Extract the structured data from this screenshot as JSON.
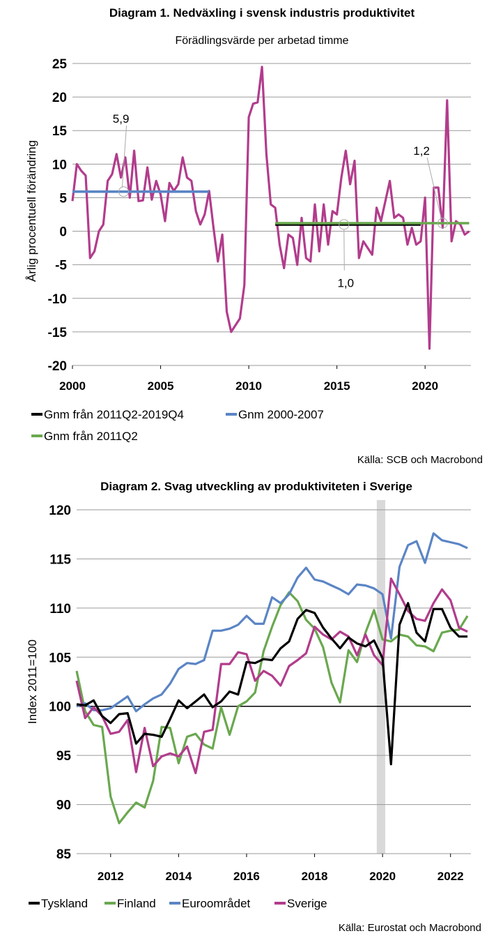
{
  "chart_data": [
    {
      "type": "line",
      "title": "Diagram 1. Nedväxling i svensk industris produktivitet",
      "subtitle": "Förädlingsvärde per arbetad timme",
      "ylabel": "Årlig procentuell förändring",
      "xlabel": "",
      "xlim": [
        2000,
        2022.6
      ],
      "ylim": [
        -20,
        25
      ],
      "xticks": [
        2000,
        2005,
        2010,
        2015,
        2020
      ],
      "yticks": [
        -20,
        -15,
        -10,
        -5,
        0,
        5,
        10,
        15,
        20,
        25
      ],
      "grid": "horizontal",
      "source": "Källa: SCB och Macrobond",
      "series": [
        {
          "name": "",
          "color": "#b23c8c",
          "x": [
            2000.0,
            2000.25,
            2000.5,
            2000.75,
            2001.0,
            2001.25,
            2001.5,
            2001.75,
            2002.0,
            2002.25,
            2002.5,
            2002.75,
            2003.0,
            2003.25,
            2003.5,
            2003.75,
            2004.0,
            2004.25,
            2004.5,
            2004.75,
            2005.0,
            2005.25,
            2005.5,
            2005.75,
            2006.0,
            2006.25,
            2006.5,
            2006.75,
            2007.0,
            2007.25,
            2007.5,
            2007.75,
            2008.0,
            2008.25,
            2008.5,
            2008.75,
            2009.0,
            2009.25,
            2009.5,
            2009.75,
            2010.0,
            2010.25,
            2010.5,
            2010.75,
            2011.0,
            2011.25,
            2011.5,
            2011.75,
            2012.0,
            2012.25,
            2012.5,
            2012.75,
            2013.0,
            2013.25,
            2013.5,
            2013.75,
            2014.0,
            2014.25,
            2014.5,
            2014.75,
            2015.0,
            2015.25,
            2015.5,
            2015.75,
            2016.0,
            2016.25,
            2016.5,
            2016.75,
            2017.0,
            2017.25,
            2017.5,
            2017.75,
            2018.0,
            2018.25,
            2018.5,
            2018.75,
            2019.0,
            2019.25,
            2019.5,
            2019.75,
            2020.0,
            2020.25,
            2020.5,
            2020.75,
            2021.0,
            2021.25,
            2021.5,
            2021.75,
            2022.0,
            2022.25,
            2022.5
          ],
          "values": [
            4.5,
            10.0,
            9.0,
            8.3,
            -4.0,
            -3.0,
            0.0,
            1.0,
            7.5,
            8.5,
            11.5,
            8.0,
            11.0,
            5.0,
            12.0,
            4.5,
            4.6,
            9.5,
            4.7,
            7.5,
            5.5,
            1.5,
            7.2,
            6.0,
            7.0,
            11.0,
            8.0,
            7.5,
            3.0,
            1.0,
            2.5,
            6.0,
            0.5,
            -4.5,
            -0.5,
            -12.0,
            -15.0,
            -14.0,
            -13.0,
            -8.0,
            17.0,
            19.0,
            19.2,
            24.5,
            11.5,
            4.0,
            3.5,
            -2.0,
            -5.5,
            -0.5,
            -1.0,
            -5.0,
            2.0,
            -4.0,
            -4.5,
            4.0,
            -3.0,
            4.0,
            -2.0,
            3.0,
            2.5,
            8.0,
            12.0,
            7.0,
            10.5,
            -4.0,
            -1.5,
            -2.5,
            -3.5,
            3.5,
            1.5,
            4.5,
            7.5,
            2.0,
            2.5,
            2.0,
            -2.0,
            0.5,
            -2.0,
            -1.5,
            5.0,
            -17.5,
            6.5,
            6.5,
            0.5,
            19.5,
            -1.5,
            1.5,
            1.0,
            -0.5,
            0.0
          ]
        },
        {
          "name": "Gnm 2000-2007",
          "color": "#5b85c5",
          "x": [
            2000.0,
            2007.75
          ],
          "values": [
            5.9,
            5.9
          ]
        },
        {
          "name": "Gnm från 2011Q2-2019Q4",
          "color": "#000000",
          "x": [
            2011.5,
            2019.75
          ],
          "values": [
            1.0,
            1.0
          ]
        },
        {
          "name": "Gnm från 2011Q2",
          "color": "#6aa84f",
          "x": [
            2011.5,
            2022.5
          ],
          "values": [
            1.2,
            1.2
          ]
        }
      ],
      "legend_order": [
        "Gnm från 2011Q2-2019Q4",
        "Gnm 2000-2007",
        "Gnm från 2011Q2"
      ],
      "annotations": [
        {
          "text": "5,9",
          "x": 2002.9,
          "y": 5.9,
          "label_x": 2002.75,
          "label_y": 16.8
        },
        {
          "text": "1,0",
          "x": 2015.4,
          "y": 1.0,
          "label_x": 2015.5,
          "label_y": -7.7
        },
        {
          "text": "1,2",
          "x": 2021.0,
          "y": 1.2,
          "label_x": 2019.8,
          "label_y": 12.0
        }
      ]
    },
    {
      "type": "line",
      "title": "Diagram 2. Svag utveckling av produktiviteten i Sverige",
      "ylabel": "Index 2011=100",
      "xlabel": "",
      "xlim": [
        2011.0,
        2022.6
      ],
      "ylim": [
        85,
        120
      ],
      "xticks": [
        2012,
        2014,
        2016,
        2018,
        2020,
        2022
      ],
      "yticks": [
        85,
        90,
        95,
        100,
        105,
        110,
        115,
        120
      ],
      "grid": "horizontal",
      "reference_line": 100,
      "shaded_band": [
        2019.83,
        2020.08
      ],
      "source": "Källa: Eurostat och Macrobond",
      "series": [
        {
          "name": "Tyskland",
          "color": "#000000",
          "x": [
            2011.0,
            2011.25,
            2011.5,
            2011.75,
            2012.0,
            2012.25,
            2012.5,
            2012.75,
            2013.0,
            2013.25,
            2013.5,
            2013.75,
            2014.0,
            2014.25,
            2014.5,
            2014.75,
            2015.0,
            2015.25,
            2015.5,
            2015.75,
            2016.0,
            2016.25,
            2016.5,
            2016.75,
            2017.0,
            2017.25,
            2017.5,
            2017.75,
            2018.0,
            2018.25,
            2018.5,
            2018.75,
            2019.0,
            2019.25,
            2019.5,
            2019.75,
            2020.0,
            2020.25,
            2020.5,
            2020.75,
            2021.0,
            2021.25,
            2021.5,
            2021.75,
            2022.0,
            2022.25,
            2022.5
          ],
          "values": [
            100.2,
            100.1,
            100.6,
            99.0,
            98.3,
            99.2,
            99.3,
            96.2,
            97.2,
            97.1,
            96.9,
            98.7,
            100.6,
            99.8,
            100.5,
            101.2,
            99.9,
            100.5,
            101.5,
            101.2,
            104.5,
            104.4,
            104.8,
            104.7,
            105.9,
            106.6,
            108.9,
            109.8,
            109.5,
            108.0,
            106.9,
            105.9,
            107.0,
            106.4,
            106.1,
            106.7,
            104.9,
            94.1,
            108.3,
            110.5,
            107.5,
            106.6,
            109.9,
            109.9,
            108.0,
            107.1,
            107.1
          ]
        },
        {
          "name": "Finland",
          "color": "#6aa84f",
          "x": [
            2011.0,
            2011.25,
            2011.5,
            2011.75,
            2012.0,
            2012.25,
            2012.5,
            2012.75,
            2013.0,
            2013.25,
            2013.5,
            2013.75,
            2014.0,
            2014.25,
            2014.5,
            2014.75,
            2015.0,
            2015.25,
            2015.5,
            2015.75,
            2016.0,
            2016.25,
            2016.5,
            2016.75,
            2017.0,
            2017.25,
            2017.5,
            2017.75,
            2018.0,
            2018.25,
            2018.5,
            2018.75,
            2019.0,
            2019.25,
            2019.5,
            2019.75,
            2020.0,
            2020.25,
            2020.5,
            2020.75,
            2021.0,
            2021.25,
            2021.5,
            2021.75,
            2022.0,
            2022.25,
            2022.5
          ],
          "values": [
            103.6,
            99.5,
            98.1,
            97.9,
            90.8,
            88.1,
            89.2,
            90.2,
            89.7,
            92.4,
            97.9,
            97.8,
            94.2,
            96.9,
            97.2,
            96.1,
            95.7,
            99.9,
            97.1,
            100.0,
            100.5,
            101.4,
            105.6,
            108.1,
            110.3,
            111.6,
            110.7,
            108.8,
            107.9,
            106.0,
            102.4,
            100.4,
            105.7,
            104.5,
            107.5,
            109.8,
            106.8,
            106.6,
            107.3,
            107.1,
            106.2,
            106.1,
            105.6,
            107.5,
            107.7,
            107.8,
            109.2
          ]
        },
        {
          "name": "Euroområdet",
          "color": "#5b85c5",
          "x": [
            2011.0,
            2011.25,
            2011.5,
            2011.75,
            2012.0,
            2012.25,
            2012.5,
            2012.75,
            2013.0,
            2013.25,
            2013.5,
            2013.75,
            2014.0,
            2014.25,
            2014.5,
            2014.75,
            2015.0,
            2015.25,
            2015.5,
            2015.75,
            2016.0,
            2016.25,
            2016.5,
            2016.75,
            2017.0,
            2017.25,
            2017.5,
            2017.75,
            2018.0,
            2018.25,
            2018.5,
            2018.75,
            2019.0,
            2019.25,
            2019.5,
            2019.75,
            2020.0,
            2020.25,
            2020.5,
            2020.75,
            2021.0,
            2021.25,
            2021.5,
            2021.75,
            2022.0,
            2022.25,
            2022.5
          ],
          "values": [
            100.0,
            100.3,
            99.6,
            99.6,
            99.8,
            100.4,
            101.0,
            99.5,
            100.2,
            100.8,
            101.2,
            102.3,
            103.8,
            104.4,
            104.3,
            104.7,
            107.7,
            107.7,
            107.9,
            108.3,
            109.2,
            108.4,
            108.4,
            111.1,
            110.5,
            111.4,
            113.1,
            114.1,
            112.9,
            112.7,
            112.3,
            111.9,
            111.4,
            112.4,
            112.3,
            112.0,
            111.4,
            106.9,
            114.2,
            116.4,
            116.8,
            114.6,
            117.6,
            116.9,
            116.7,
            116.5,
            116.1
          ]
        },
        {
          "name": "Sverige",
          "color": "#b23c8c",
          "x": [
            2011.0,
            2011.25,
            2011.5,
            2011.75,
            2012.0,
            2012.25,
            2012.5,
            2012.75,
            2013.0,
            2013.25,
            2013.5,
            2013.75,
            2014.0,
            2014.25,
            2014.5,
            2014.75,
            2015.0,
            2015.25,
            2015.5,
            2015.75,
            2016.0,
            2016.25,
            2016.5,
            2016.75,
            2017.0,
            2017.25,
            2017.5,
            2017.75,
            2018.0,
            2018.25,
            2018.5,
            2018.75,
            2019.0,
            2019.25,
            2019.5,
            2019.75,
            2020.0,
            2020.25,
            2020.5,
            2020.75,
            2021.0,
            2021.25,
            2021.5,
            2021.75,
            2022.0,
            2022.25,
            2022.5
          ],
          "values": [
            102.6,
            98.8,
            99.9,
            99.0,
            97.2,
            97.4,
            98.6,
            93.3,
            97.8,
            93.9,
            94.9,
            95.2,
            94.9,
            95.9,
            93.2,
            97.4,
            97.6,
            104.3,
            104.3,
            105.5,
            105.3,
            102.6,
            103.6,
            103.1,
            102.1,
            104.1,
            104.7,
            105.4,
            108.1,
            107.3,
            106.8,
            107.6,
            107.1,
            105.2,
            107.3,
            105.2,
            104.2,
            113.0,
            111.4,
            109.7,
            108.9,
            108.7,
            110.5,
            111.9,
            110.8,
            108.0,
            107.6
          ]
        }
      ],
      "legend_order": [
        "Tyskland",
        "Finland",
        "Euroområdet",
        "Sverige"
      ]
    }
  ]
}
